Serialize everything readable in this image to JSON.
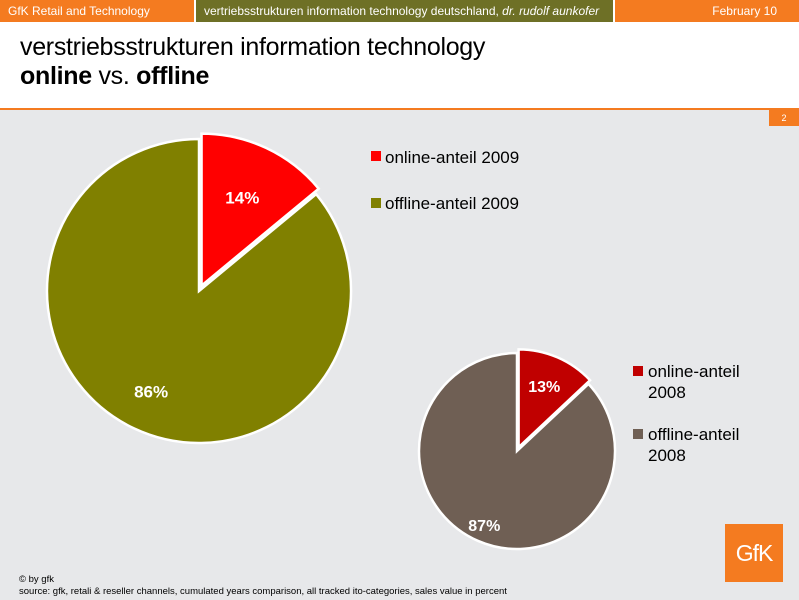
{
  "header": {
    "company": "GfK Retail and Technology",
    "topic_main": "vertriebsstrukturen information technology deutschland,",
    "topic_author": "dr. rudolf aunkofer",
    "date": "February 10"
  },
  "title": {
    "line1": "verstriebsstrukturen information technology",
    "line2_online": "online",
    "line2_vs": "vs.",
    "line2_offline": "offline"
  },
  "page_number": "2",
  "chart_data": [
    {
      "type": "pie",
      "labels": [
        "online-anteil 2009",
        "offline-anteil 2009"
      ],
      "values": [
        14,
        86
      ],
      "data_labels": [
        "14%",
        "86%"
      ],
      "colors": [
        "#FF0000",
        "#808000"
      ],
      "legend_position": "right"
    },
    {
      "type": "pie",
      "labels": [
        "online-anteil 2008",
        "offline-anteil 2008"
      ],
      "legend_lines": [
        [
          "online-anteil",
          "2008"
        ],
        [
          "offline-anteil",
          "2008"
        ]
      ],
      "values": [
        13,
        87
      ],
      "data_labels": [
        "13%",
        "87%"
      ],
      "colors": [
        "#C00000",
        "#6F5F54"
      ],
      "legend_position": "right"
    }
  ],
  "footer": {
    "copyright": "© by gfk",
    "source": "source: gfk,   retali & reseller channels, cumulated years comparison, all tracked ito-categories, sales  value in percent"
  },
  "logo_text": "GfK"
}
